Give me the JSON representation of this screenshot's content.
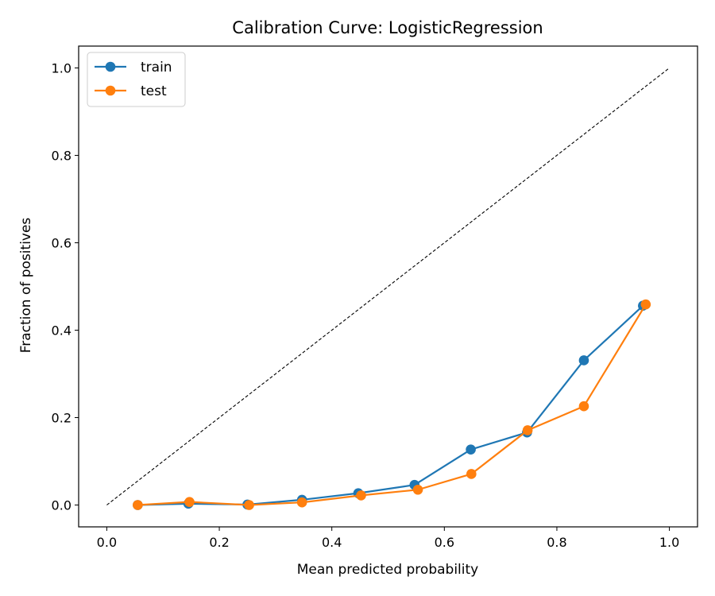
{
  "chart_data": {
    "type": "line",
    "title": "Calibration Curve: LogisticRegression",
    "xlabel": "Mean predicted probability",
    "ylabel": "Fraction of positives",
    "xlim": [
      -0.05,
      1.05
    ],
    "ylim": [
      -0.05,
      1.05
    ],
    "xticks": [
      0.0,
      0.2,
      0.4,
      0.6,
      0.8,
      1.0
    ],
    "yticks": [
      0.0,
      0.2,
      0.4,
      0.6,
      0.8,
      1.0
    ],
    "tick_labels_x": [
      "0.0",
      "0.2",
      "0.4",
      "0.6",
      "0.8",
      "1.0"
    ],
    "tick_labels_y": [
      "0.0",
      "0.2",
      "0.4",
      "0.6",
      "0.8",
      "1.0"
    ],
    "grid": false,
    "legend_position": "top-left",
    "reference_line": {
      "x": [
        0.0,
        1.0
      ],
      "y": [
        0.0,
        1.0
      ],
      "color": "#000000",
      "style": "dashed"
    },
    "series": [
      {
        "name": "train",
        "color": "#1f77b4",
        "x": [
          0.055,
          0.145,
          0.25,
          0.347,
          0.447,
          0.547,
          0.647,
          0.747,
          0.848,
          0.953
        ],
        "y": [
          0.0,
          0.003,
          0.001,
          0.012,
          0.027,
          0.046,
          0.127,
          0.166,
          0.331,
          0.456
        ]
      },
      {
        "name": "test",
        "color": "#ff7f0e",
        "x": [
          0.055,
          0.147,
          0.253,
          0.347,
          0.452,
          0.553,
          0.648,
          0.748,
          0.848,
          0.958
        ],
        "y": [
          0.0,
          0.007,
          0.0,
          0.006,
          0.022,
          0.035,
          0.071,
          0.171,
          0.226,
          0.459
        ]
      }
    ]
  }
}
